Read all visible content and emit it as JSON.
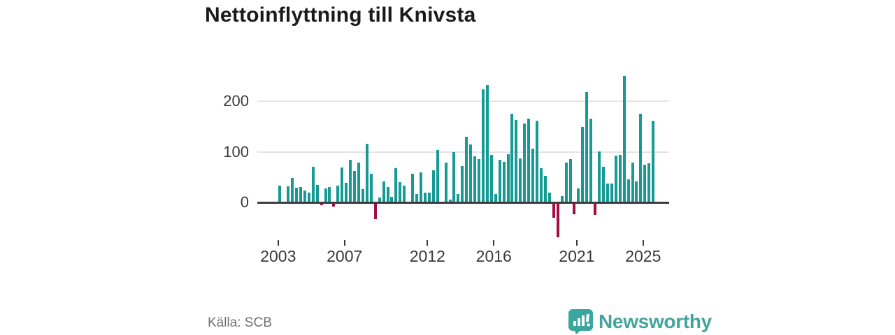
{
  "header": {
    "title": "Nettoinflyttning till Knivsta"
  },
  "footer": {
    "source": "Källa: SCB",
    "brand_name": "Newsworthy"
  },
  "colors": {
    "bar_positive": "#179a94",
    "bar_negative": "#a50e45",
    "brand_teal": "#3aa69e",
    "axis": "#3c3c3c",
    "grid": "#e4e4e4",
    "title_text": "#1a1a1a",
    "tick_text": "#3a3a3a",
    "source_text": "#707070"
  },
  "chart_data": {
    "type": "bar",
    "title": "Nettoinflyttning till Knivsta",
    "frequency": "quarterly",
    "start_period": "2003 Q1",
    "end_period": "2025 Q3",
    "ylabel": "",
    "xlabel": "",
    "grid": "on",
    "y_ticks": [
      0,
      100,
      200
    ],
    "ylim": [
      -80,
      262
    ],
    "x_ticks": [
      {
        "label": "2003",
        "index": 0
      },
      {
        "label": "2007",
        "index": 16
      },
      {
        "label": "2012",
        "index": 36
      },
      {
        "label": "2016",
        "index": 52
      },
      {
        "label": "2021",
        "index": 72
      },
      {
        "label": "2025",
        "index": 88
      }
    ],
    "values": [
      33,
      0,
      32,
      48,
      29,
      31,
      23,
      19,
      70,
      34,
      -5,
      28,
      31,
      -8,
      33,
      69,
      39,
      84,
      62,
      78,
      26,
      116,
      57,
      -33,
      9,
      41,
      31,
      11,
      67,
      40,
      33,
      -3,
      57,
      16,
      60,
      19,
      19,
      63,
      103,
      0,
      79,
      6,
      100,
      16,
      72,
      130,
      114,
      91,
      85,
      224,
      232,
      94,
      17,
      84,
      80,
      95,
      175,
      163,
      87,
      156,
      166,
      106,
      161,
      67,
      53,
      20,
      -31,
      -69,
      12,
      78,
      86,
      -23,
      28,
      149,
      218,
      165,
      -25,
      101,
      71,
      37,
      37,
      92,
      94,
      249,
      45,
      79,
      42,
      175,
      75,
      77,
      162
    ]
  }
}
